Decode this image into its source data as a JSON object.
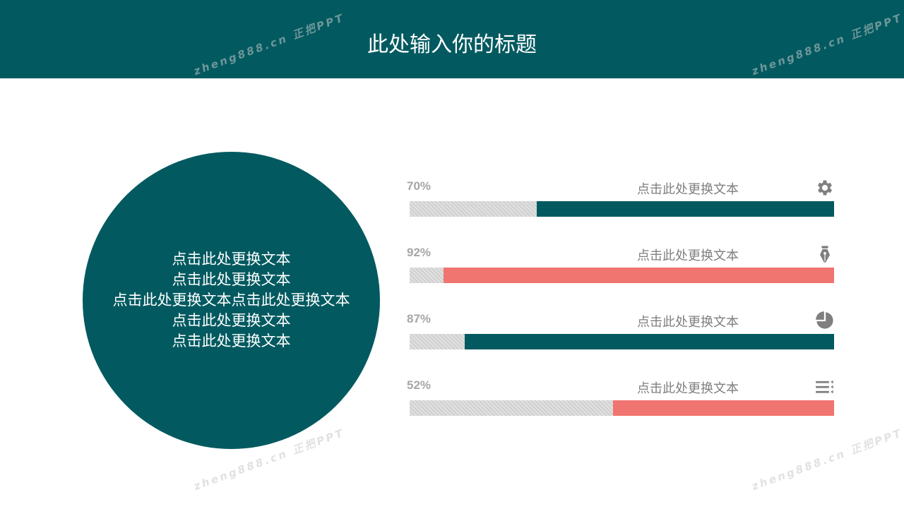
{
  "header": {
    "title": "此处输入你的标题"
  },
  "circle": {
    "lines": [
      "点击此处更换文本",
      "点击此处更换文本",
      "点击此处更换文本点击此处更换文本",
      "点击此处更换文本",
      "点击此处更换文本"
    ]
  },
  "colors": {
    "teal": "#025a60",
    "coral": "#f07470",
    "gray": "#d4d4d4"
  },
  "watermark": "zheng888.cn 正把PPT",
  "chart_data": {
    "type": "bar",
    "orientation": "horizontal progress",
    "items": [
      {
        "percent_label": "70%",
        "value": 70,
        "label": "点击此处更换文本",
        "icon": "gear-icon",
        "color": "#025a60"
      },
      {
        "percent_label": "92%",
        "value": 92,
        "label": "点击此处更换文本",
        "icon": "pen-nib-icon",
        "color": "#f07470"
      },
      {
        "percent_label": "87%",
        "value": 87,
        "label": "点击此处更换文本",
        "icon": "pie-chart-icon",
        "color": "#025a60"
      },
      {
        "percent_label": "52%",
        "value": 52,
        "label": "点击此处更换文本",
        "icon": "list-icon",
        "color": "#f07470"
      }
    ],
    "xlim": [
      0,
      100
    ]
  }
}
